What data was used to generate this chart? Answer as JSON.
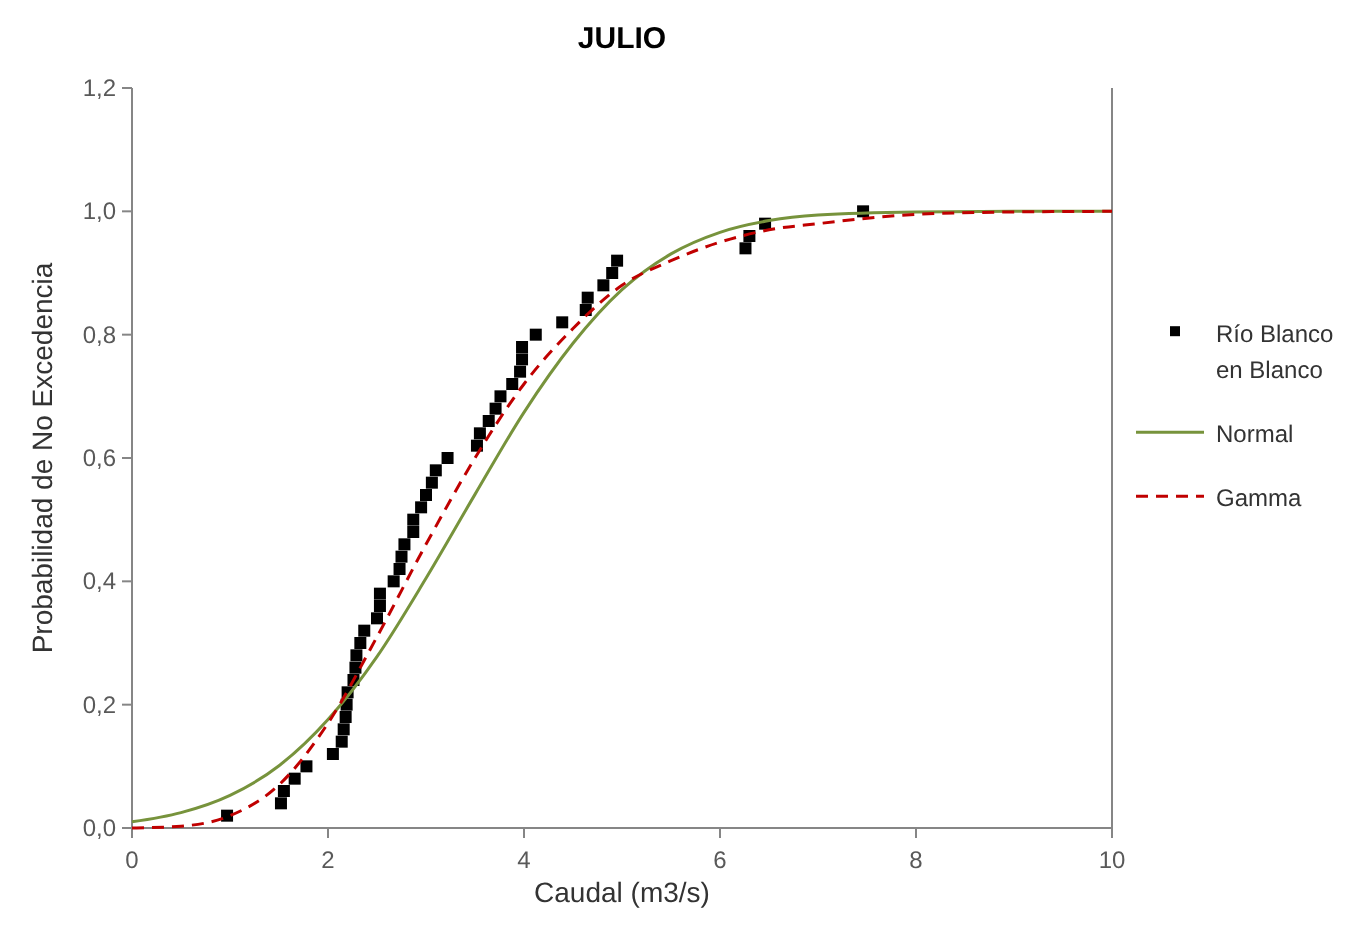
{
  "chart_data": {
    "type": "scatter",
    "title": "JULIO",
    "xlabel": "Caudal (m3/s)",
    "ylabel": "Probabilidad de No Excedencia",
    "xlim": [
      0,
      10
    ],
    "xticks": [
      0,
      2,
      4,
      6,
      8,
      10
    ],
    "ylim": [
      0,
      1.2
    ],
    "yticks": [
      {
        "value": 0,
        "label": "0,0"
      },
      {
        "value": 0.2,
        "label": "0,2"
      },
      {
        "value": 0.4,
        "label": "0,4"
      },
      {
        "value": 0.6,
        "label": "0,6"
      },
      {
        "value": 0.8,
        "label": "0,8"
      },
      {
        "value": 1,
        "label": "1,0"
      },
      {
        "value": 1.2,
        "label": "1,2"
      }
    ],
    "grid": false,
    "legend": "right",
    "series": [
      {
        "name": "Río Blanco en Blanco",
        "marker": "square",
        "color": "#000000",
        "x": [
          0.97,
          1.52,
          1.55,
          1.66,
          1.78,
          2.05,
          2.14,
          2.16,
          2.18,
          2.19,
          2.2,
          2.26,
          2.28,
          2.29,
          2.33,
          2.37,
          2.5,
          2.53,
          2.53,
          2.67,
          2.73,
          2.75,
          2.78,
          2.87,
          2.87,
          2.95,
          3.0,
          3.06,
          3.1,
          3.22,
          3.52,
          3.55,
          3.64,
          3.71,
          3.76,
          3.88,
          3.96,
          3.98,
          3.98,
          4.12,
          4.39,
          4.63,
          4.65,
          4.81,
          4.9,
          4.95,
          6.26,
          6.3,
          6.46,
          7.46
        ],
        "values": [
          0.02,
          0.04,
          0.06,
          0.08,
          0.1,
          0.12,
          0.14,
          0.16,
          0.18,
          0.2,
          0.22,
          0.24,
          0.26,
          0.28,
          0.3,
          0.32,
          0.34,
          0.36,
          0.38,
          0.4,
          0.42,
          0.44,
          0.46,
          0.48,
          0.5,
          0.52,
          0.54,
          0.56,
          0.58,
          0.6,
          0.62,
          0.64,
          0.66,
          0.68,
          0.7,
          0.72,
          0.74,
          0.76,
          0.78,
          0.8,
          0.82,
          0.84,
          0.86,
          0.88,
          0.9,
          0.92,
          0.94,
          0.96,
          0.98,
          1.0
        ]
      },
      {
        "name": "Normal",
        "type": "line",
        "line_style": "solid",
        "color": "#77933c",
        "x": [
          0,
          0.5,
          1,
          1.5,
          2,
          2.5,
          3,
          3.5,
          4,
          4.5,
          5,
          5.5,
          6,
          6.5,
          7,
          8,
          9,
          10
        ],
        "values": [
          0.01,
          0.025,
          0.053,
          0.101,
          0.176,
          0.278,
          0.405,
          0.541,
          0.674,
          0.786,
          0.873,
          0.931,
          0.966,
          0.985,
          0.994,
          0.999,
          1.0,
          1.0
        ]
      },
      {
        "name": "Gamma",
        "type": "line",
        "line_style": "dashed",
        "color": "#c00000",
        "x": [
          0,
          0.5,
          1,
          1.5,
          2,
          2.5,
          3,
          3.5,
          4,
          4.5,
          5,
          5.5,
          6,
          6.5,
          7,
          8,
          9,
          10
        ],
        "values": [
          0,
          0.003,
          0.02,
          0.07,
          0.17,
          0.31,
          0.46,
          0.6,
          0.72,
          0.81,
          0.88,
          0.92,
          0.95,
          0.97,
          0.98,
          0.995,
          0.999,
          1.0
        ]
      }
    ]
  }
}
